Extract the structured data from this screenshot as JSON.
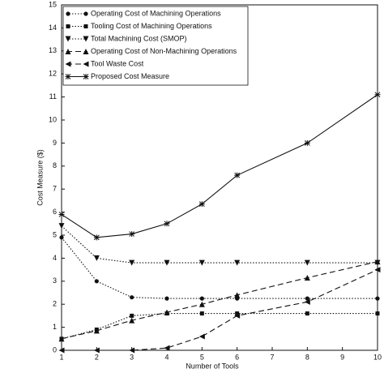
{
  "chart_data": {
    "type": "line",
    "x_label": "Number of Tools",
    "y_label": "Cost Measure ($)",
    "x": [
      1,
      2,
      3,
      4,
      5,
      6,
      8,
      10
    ],
    "xlim": [
      1,
      10
    ],
    "xticks": [
      1,
      2,
      3,
      4,
      5,
      6,
      7,
      8,
      9,
      10
    ],
    "ylim": [
      0,
      15
    ],
    "yticks": [
      0,
      1,
      2,
      3,
      4,
      5,
      6,
      7,
      8,
      9,
      10,
      11,
      12,
      13,
      14,
      15
    ],
    "legend": "upper left",
    "series": [
      {
        "name": "Operating Cost of Machining Operations",
        "color": "#111111",
        "dash": "dotted",
        "marker": "circle",
        "values": [
          4.9,
          3.0,
          2.3,
          2.25,
          2.25,
          2.25,
          2.25,
          2.25
        ]
      },
      {
        "name": "Tooling Cost of Machining Operations",
        "color": "#111111",
        "dash": "dotted",
        "marker": "square",
        "values": [
          0.5,
          0.9,
          1.5,
          1.6,
          1.6,
          1.6,
          1.6,
          1.6
        ]
      },
      {
        "name": "Total Machining Cost (SMOP)",
        "color": "#111111",
        "dash": "dotted",
        "marker": "triangle-down",
        "values": [
          5.4,
          4.0,
          3.8,
          3.8,
          3.8,
          3.8,
          3.8,
          3.8
        ]
      },
      {
        "name": "Operating  Cost of Non-Machining Operations",
        "color": "#111111",
        "dash": "dashed",
        "marker": "triangle-up",
        "values": [
          0.5,
          0.85,
          1.3,
          1.65,
          2.0,
          2.4,
          3.15,
          3.85
        ]
      },
      {
        "name": "Tool Waste Cost",
        "color": "#111111",
        "dash": "dashed",
        "marker": "triangle-left",
        "values": [
          0,
          0,
          0,
          0.1,
          0.6,
          1.5,
          2.1,
          3.5
        ]
      },
      {
        "name": "Proposed Cost Measure",
        "color": "#111111",
        "dash": "solid",
        "marker": "star",
        "values": [
          5.9,
          4.9,
          5.05,
          5.5,
          6.35,
          7.6,
          9.0,
          11.1
        ]
      }
    ]
  }
}
